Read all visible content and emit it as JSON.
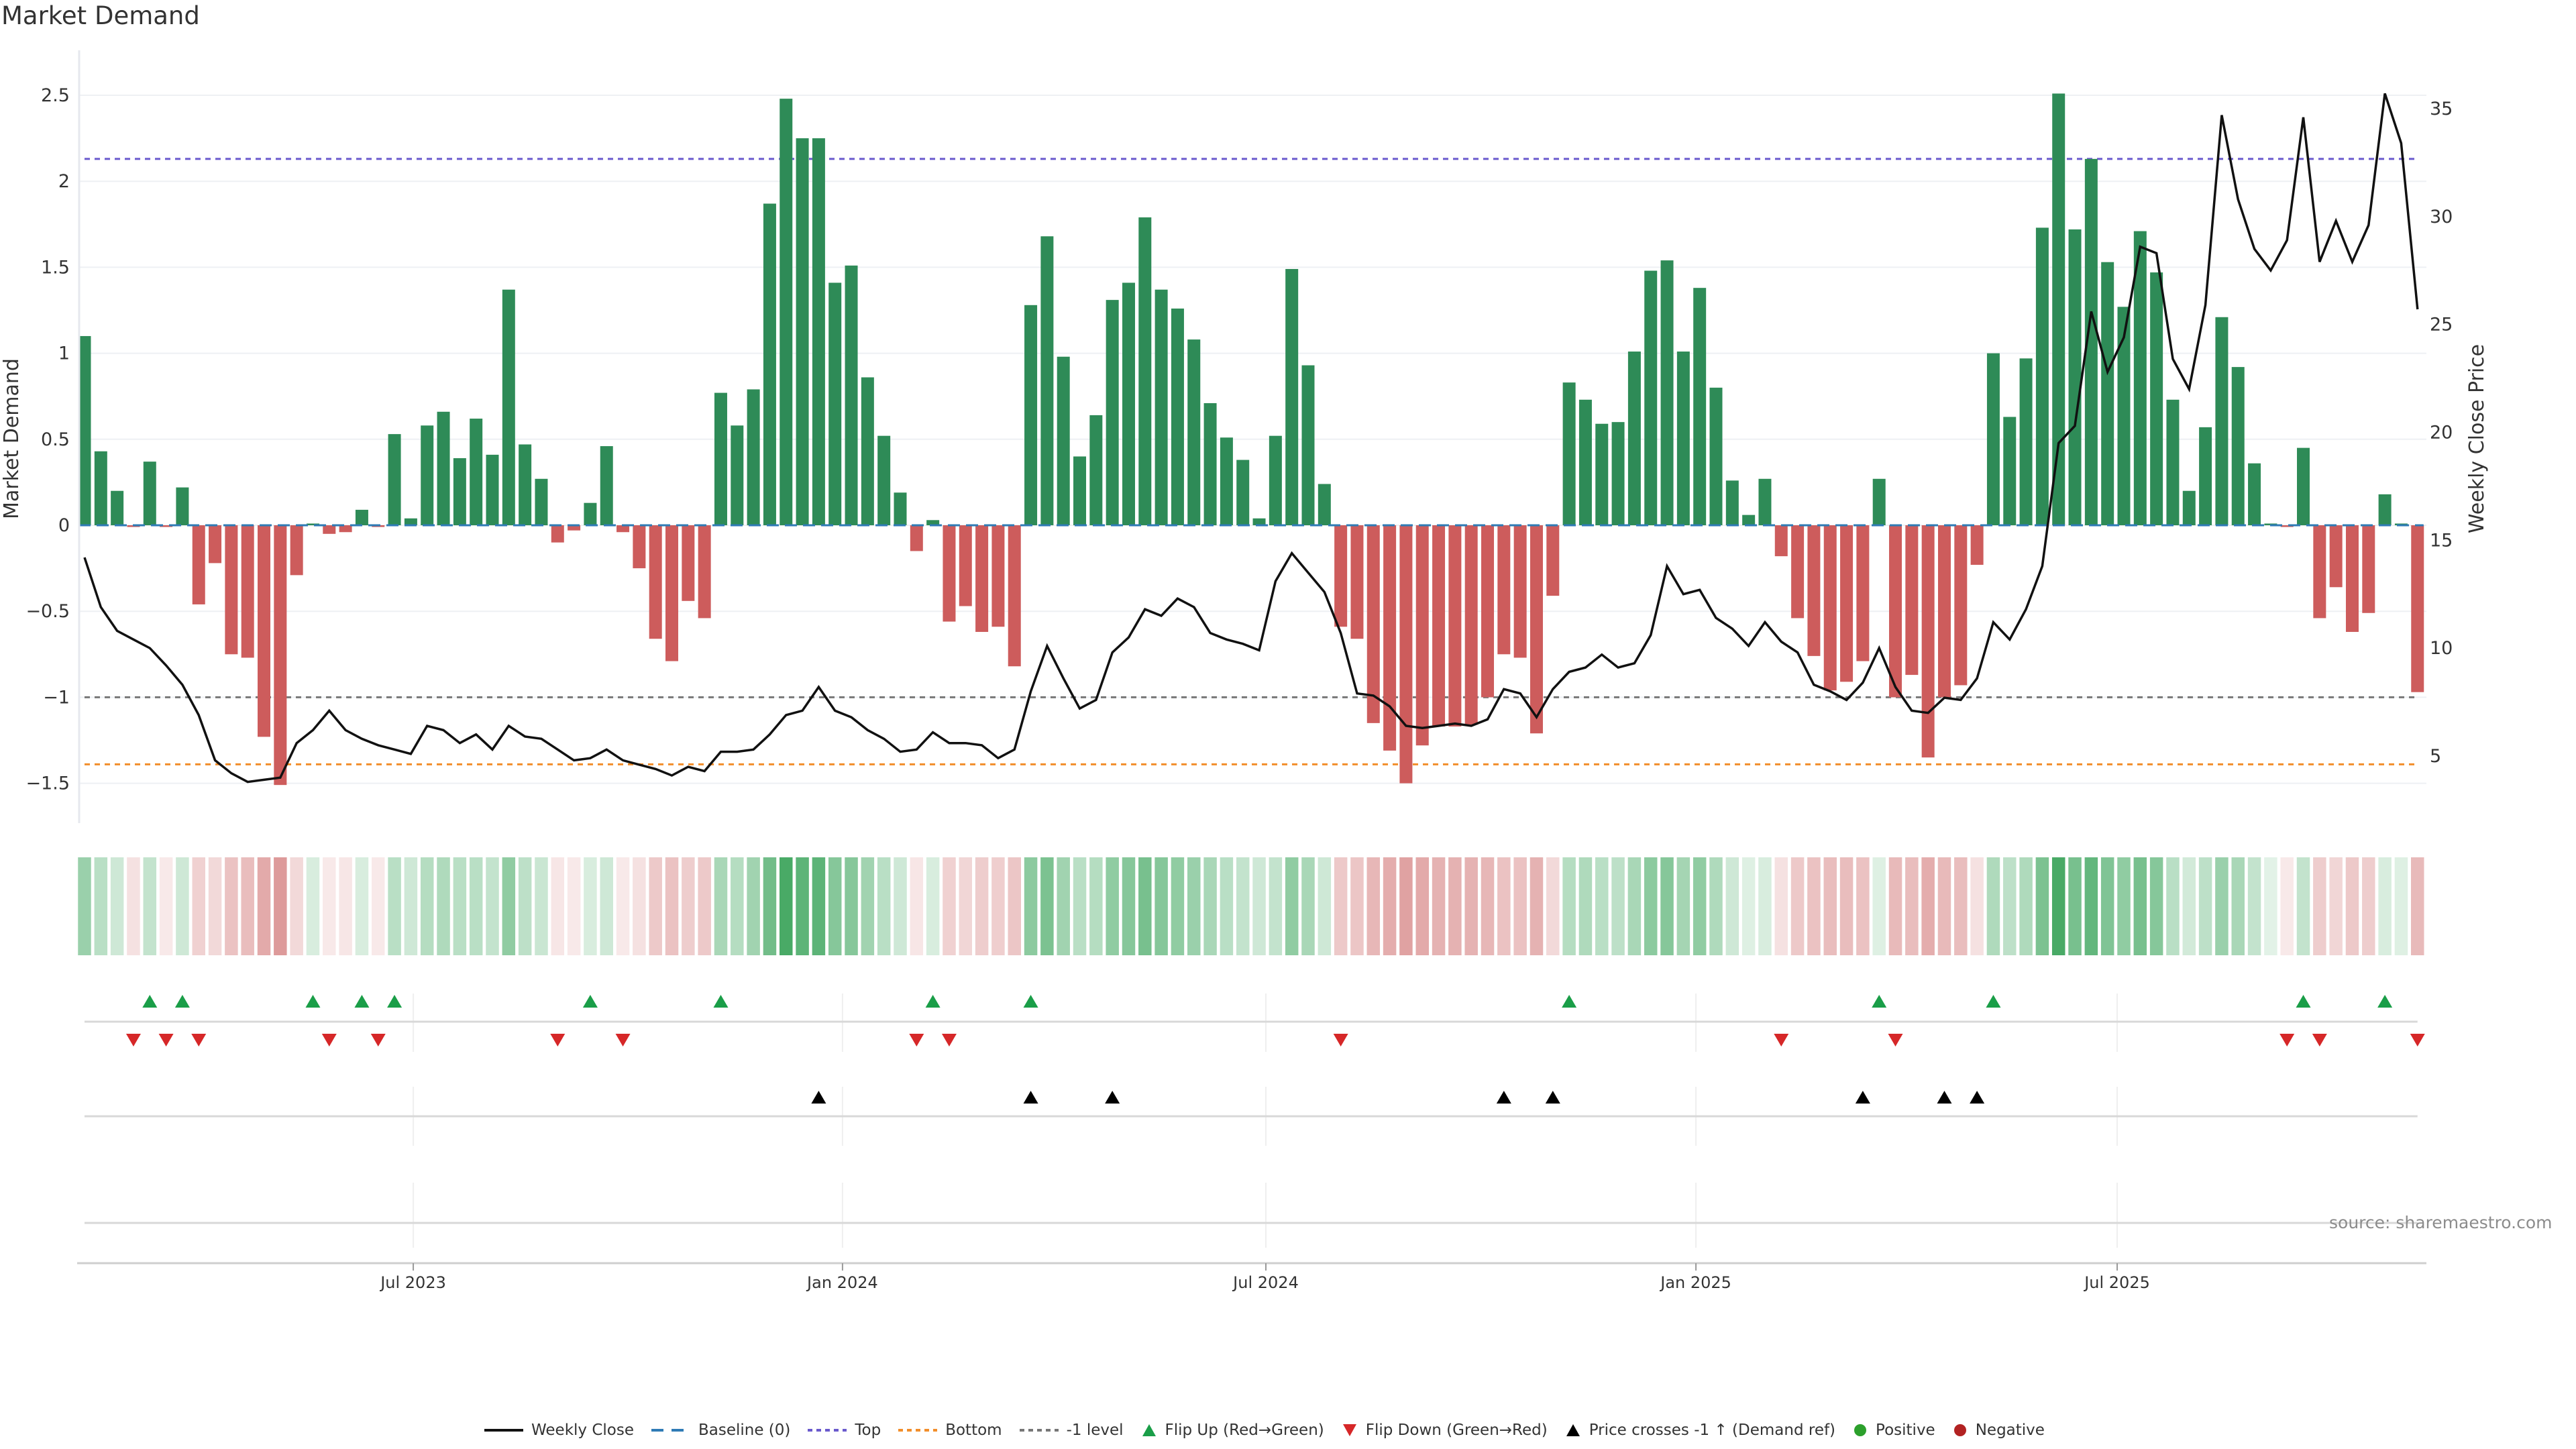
{
  "title": "Market Demand",
  "source": "source: sharemaestro.com",
  "colors": {
    "positive_bar": "#2e8b57",
    "negative_bar": "#cd5c5c",
    "price_line": "#111111",
    "baseline": "#2f7bb6",
    "top": "#6a5acd",
    "bottom": "#f28e2b",
    "minus_one": "#777777",
    "flip_up": "#1a9e48",
    "flip_down": "#d62728",
    "price_cross": "#000000",
    "positive_dot": "#2ca02c",
    "negative_dot": "#b22222",
    "heat_positive": "#289b4b",
    "heat_negative": "#c85a5a"
  },
  "legend": {
    "position": "bottom",
    "items": [
      {
        "label": "Weekly Close",
        "icon": "solid-line"
      },
      {
        "label": "Baseline (0)",
        "icon": "dashed-line"
      },
      {
        "label": "Top",
        "icon": "dotted-line"
      },
      {
        "label": "Bottom",
        "icon": "dotted-line"
      },
      {
        "label": "-1 level",
        "icon": "dotted-line"
      },
      {
        "label": "Flip Up (Red→Green)",
        "icon": "triangle-up"
      },
      {
        "label": "Flip Down (Green→Red)",
        "icon": "triangle-down"
      },
      {
        "label": "Price crosses -1 ↑ (Demand ref)",
        "icon": "triangle-up"
      },
      {
        "label": "Positive",
        "icon": "circle"
      },
      {
        "label": "Negative",
        "icon": "circle"
      }
    ]
  },
  "chart_data": {
    "type": "bar",
    "title": "Market Demand",
    "xlabel": "",
    "ylabel": "Market Demand",
    "y2label": "Weekly Close Price",
    "ylim": [
      -1.73,
      2.76
    ],
    "y2lim": [
      1.9,
      37.7
    ],
    "grid": true,
    "yticks": [
      2.5,
      2,
      1.5,
      1,
      0.5,
      0,
      -0.5,
      -1,
      -1.5
    ],
    "yticklabels": [
      "2.5",
      "2",
      "1.5",
      "1",
      "0.5",
      "0",
      "−0.5",
      "−1",
      "−1.5"
    ],
    "y2ticks": [
      35,
      30,
      25,
      20,
      15,
      10,
      5
    ],
    "y2ticklabels": [
      "35",
      "30",
      "25",
      "20",
      "15",
      "10",
      "5"
    ],
    "x_unit": "week index",
    "xticks": [
      {
        "index": 20.15,
        "label": "Jul 2023"
      },
      {
        "index": 46.46,
        "label": "Jan 2024"
      },
      {
        "index": 72.41,
        "label": "Jul 2024"
      },
      {
        "index": 98.77,
        "label": "Jan 2025"
      },
      {
        "index": 124.59,
        "label": "Jul 2025"
      }
    ],
    "series": [
      {
        "name": "Market Demand",
        "type": "bar",
        "axis": "left",
        "values": [
          1.1,
          0.43,
          0.2,
          -0.01,
          0.37,
          -0.01,
          0.22,
          -0.46,
          -0.22,
          -0.75,
          -0.77,
          -1.23,
          -1.51,
          -0.29,
          0.01,
          -0.05,
          -0.04,
          0.09,
          -0.01,
          0.53,
          0.04,
          0.58,
          0.66,
          0.39,
          0.62,
          0.41,
          1.37,
          0.47,
          0.27,
          -0.1,
          -0.03,
          0.13,
          0.46,
          -0.04,
          -0.25,
          -0.66,
          -0.79,
          -0.44,
          -0.54,
          0.77,
          0.58,
          0.79,
          1.87,
          2.48,
          2.25,
          2.25,
          1.41,
          1.51,
          0.86,
          0.52,
          0.19,
          -0.15,
          0.03,
          -0.56,
          -0.47,
          -0.62,
          -0.59,
          -0.82,
          1.28,
          1.68,
          0.98,
          0.4,
          0.64,
          1.31,
          1.41,
          1.79,
          1.37,
          1.26,
          1.08,
          0.71,
          0.51,
          0.38,
          0.04,
          0.52,
          1.49,
          0.93,
          0.24,
          -0.59,
          -0.66,
          -1.15,
          -1.31,
          -1.5,
          -1.28,
          -1.17,
          -1.17,
          -1.16,
          -1.0,
          -0.75,
          -0.77,
          -1.21,
          -0.41,
          0.83,
          0.73,
          0.59,
          0.6,
          1.01,
          1.48,
          1.54,
          1.01,
          1.38,
          0.8,
          0.26,
          0.06,
          0.27,
          -0.18,
          -0.54,
          -0.76,
          -0.96,
          -0.91,
          -0.79,
          0.27,
          -1.0,
          -0.87,
          -1.35,
          -1.0,
          -0.93,
          -0.23,
          1.0,
          0.63,
          0.97,
          1.73,
          2.51,
          1.72,
          2.13,
          1.53,
          1.27,
          1.71,
          1.47,
          0.73,
          0.2,
          0.57,
          1.21,
          0.92,
          0.36,
          0.01,
          -0.01,
          0.45,
          -0.54,
          -0.36,
          -0.62,
          -0.51,
          0.18,
          0.01,
          -0.97
        ]
      },
      {
        "name": "Weekly Close",
        "type": "line",
        "axis": "right",
        "values": [
          14.2,
          11.9,
          10.8,
          10.4,
          10.0,
          9.2,
          8.3,
          6.9,
          4.8,
          4.2,
          3.8,
          3.9,
          4.0,
          5.6,
          6.2,
          7.1,
          6.2,
          5.8,
          5.5,
          5.3,
          5.1,
          6.4,
          6.2,
          5.6,
          6.0,
          5.3,
          6.4,
          5.9,
          5.8,
          5.3,
          4.8,
          4.9,
          5.3,
          4.8,
          4.6,
          4.4,
          4.1,
          4.5,
          4.3,
          5.2,
          5.2,
          5.3,
          6.0,
          6.9,
          7.1,
          8.2,
          7.1,
          6.8,
          6.2,
          5.8,
          5.2,
          5.3,
          6.1,
          5.6,
          5.6,
          5.5,
          4.9,
          5.3,
          8.0,
          10.1,
          8.6,
          7.2,
          7.6,
          9.8,
          10.5,
          11.8,
          11.5,
          12.3,
          11.9,
          10.7,
          10.4,
          10.2,
          9.9,
          13.1,
          14.4,
          13.5,
          12.6,
          10.7,
          7.9,
          7.8,
          7.3,
          6.4,
          6.3,
          6.4,
          6.5,
          6.4,
          6.7,
          8.1,
          7.9,
          6.8,
          8.1,
          8.9,
          9.1,
          9.7,
          9.1,
          9.3,
          10.6,
          13.8,
          12.5,
          12.7,
          11.4,
          10.9,
          10.1,
          11.2,
          10.3,
          9.8,
          8.3,
          8.0,
          7.6,
          8.4,
          10.0,
          8.2,
          7.1,
          7.0,
          7.7,
          7.6,
          8.6,
          11.2,
          10.4,
          11.8,
          13.8,
          19.5,
          20.3,
          25.6,
          22.8,
          24.4,
          28.6,
          28.3,
          23.4,
          22.0,
          25.9,
          34.7,
          30.8,
          28.5,
          27.5,
          28.9,
          34.6,
          27.9,
          29.8,
          27.9,
          29.6,
          35.7,
          33.4,
          25.7
        ]
      },
      {
        "name": "Demand intensity",
        "type": "heatmap",
        "values": [
          0.45,
          0.3,
          0.2,
          -0.15,
          0.25,
          -0.1,
          0.2,
          -0.25,
          -0.2,
          -0.35,
          -0.38,
          -0.5,
          -0.6,
          -0.2,
          0.15,
          -0.1,
          -0.12,
          0.15,
          -0.1,
          0.3,
          0.2,
          0.32,
          0.35,
          0.3,
          0.3,
          0.25,
          0.5,
          0.28,
          0.22,
          -0.12,
          -0.1,
          0.15,
          0.2,
          -0.1,
          -0.15,
          -0.3,
          -0.35,
          -0.28,
          -0.3,
          0.38,
          0.32,
          0.42,
          0.65,
          0.85,
          0.75,
          0.75,
          0.55,
          0.55,
          0.42,
          0.3,
          0.2,
          -0.12,
          0.15,
          -0.25,
          -0.22,
          -0.28,
          -0.27,
          -0.32,
          0.52,
          0.6,
          0.42,
          0.3,
          0.32,
          0.5,
          0.55,
          0.62,
          0.55,
          0.5,
          0.45,
          0.38,
          0.3,
          0.25,
          0.2,
          0.25,
          0.5,
          0.38,
          0.2,
          -0.3,
          -0.32,
          -0.42,
          -0.48,
          -0.55,
          -0.5,
          -0.45,
          -0.45,
          -0.45,
          -0.42,
          -0.35,
          -0.35,
          -0.45,
          -0.2,
          0.32,
          0.35,
          0.3,
          0.28,
          0.38,
          0.52,
          0.55,
          0.4,
          0.5,
          0.35,
          0.2,
          0.12,
          0.15,
          -0.15,
          -0.3,
          -0.35,
          -0.38,
          -0.38,
          -0.35,
          0.12,
          -0.4,
          -0.38,
          -0.48,
          -0.4,
          -0.38,
          -0.15,
          0.35,
          0.28,
          0.35,
          0.6,
          0.85,
          0.62,
          0.72,
          0.58,
          0.5,
          0.62,
          0.55,
          0.3,
          0.18,
          0.28,
          0.45,
          0.38,
          0.25,
          0.1,
          -0.1,
          0.25,
          -0.28,
          -0.22,
          -0.3,
          -0.28,
          0.15,
          0.12,
          -0.4
        ]
      }
    ],
    "reference_lines": [
      {
        "name": "Baseline (0)",
        "value": 0,
        "style": "dashed"
      },
      {
        "name": "Top",
        "value": 2.13,
        "style": "dotted"
      },
      {
        "name": "Bottom",
        "value": -1.39,
        "style": "dotted"
      },
      {
        "name": "-1 level",
        "value": -1,
        "style": "dotted"
      }
    ],
    "markers": {
      "flip_up": [
        4,
        6,
        14,
        17,
        19,
        31,
        39,
        52,
        58,
        91,
        110,
        117,
        136,
        141
      ],
      "flip_down": [
        3,
        5,
        7,
        15,
        18,
        29,
        33,
        51,
        53,
        77,
        104,
        111,
        135,
        137,
        143
      ],
      "price_cross": [
        45,
        58,
        63,
        87,
        90,
        109,
        114,
        116
      ]
    }
  }
}
